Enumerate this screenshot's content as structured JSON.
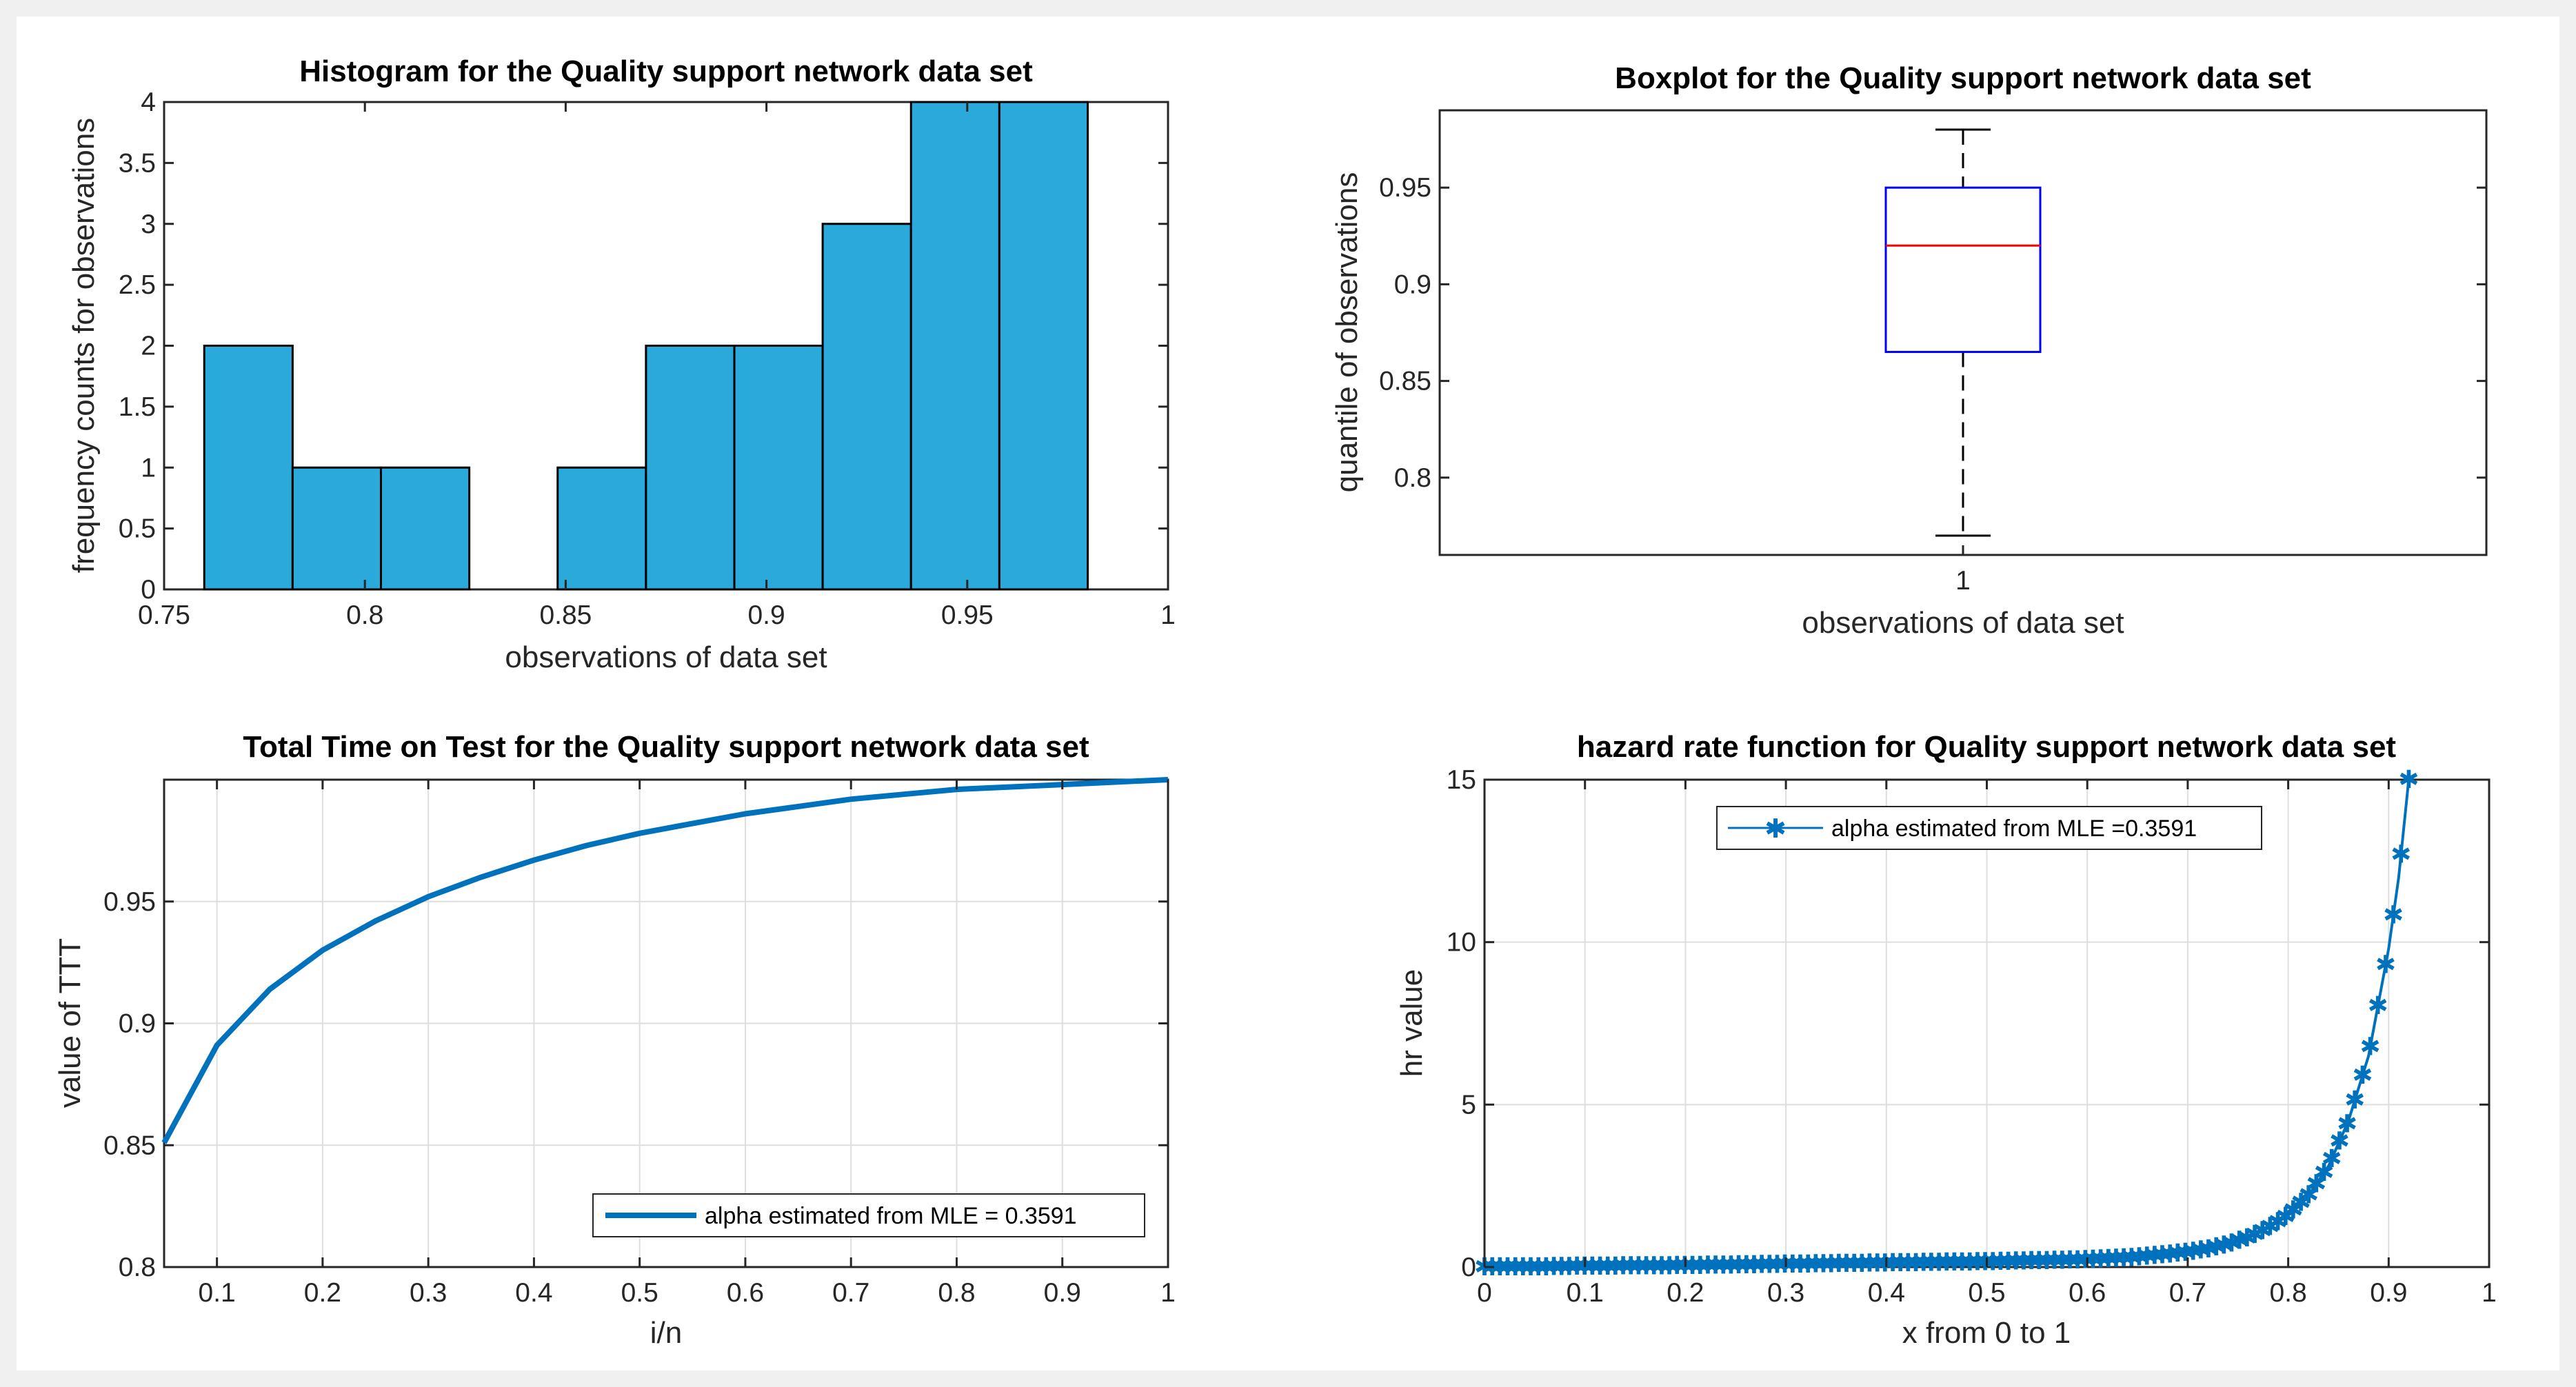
{
  "chart_data": [
    {
      "id": "histogram",
      "type": "bar",
      "title": "Histogram for the Quality support network  data set",
      "xlabel": "observations of  data set",
      "ylabel": "frequency counts for observations",
      "xlim": [
        0.75,
        1
      ],
      "ylim": [
        0,
        4
      ],
      "xticks": [
        "0.75",
        "0.8",
        "0.85",
        "0.9",
        "0.95",
        "1"
      ],
      "yticks": [
        "0",
        "0.5",
        "1",
        "1.5",
        "2",
        "2.5",
        "3",
        "3.5",
        "4"
      ],
      "bin_edges": [
        0.76,
        0.782,
        0.804,
        0.826,
        0.848,
        0.87,
        0.892,
        0.914,
        0.936,
        0.958,
        0.98
      ],
      "values": [
        2,
        1,
        1,
        0,
        1,
        2,
        2,
        3,
        4,
        4
      ],
      "colors": {
        "bar": "#29aada",
        "edge": "#000000"
      }
    },
    {
      "id": "boxplot",
      "type": "box",
      "title": "Boxplot for the Quality support network data set",
      "xlabel": "observations of  data set",
      "ylabel": "quantile of observations",
      "categories": [
        "1"
      ],
      "ylim": [
        0.76,
        0.99
      ],
      "yticks": [
        "0.8",
        "0.85",
        "0.9",
        "0.95"
      ],
      "stats": {
        "min": 0.77,
        "q1": 0.865,
        "median": 0.92,
        "q3": 0.95,
        "max": 0.98
      },
      "colors": {
        "box": "#0000ff",
        "median": "#ff0000",
        "whisker": "#000000"
      }
    },
    {
      "id": "ttt",
      "type": "line",
      "title": "Total Time on Test for the Quality support network data set",
      "xlabel": "i/n",
      "ylabel": "value of TTT",
      "xlim": [
        0.05,
        1
      ],
      "ylim": [
        0.8,
        1
      ],
      "xticks": [
        "0.1",
        "0.2",
        "0.3",
        "0.4",
        "0.5",
        "0.6",
        "0.7",
        "0.8",
        "0.9",
        "1"
      ],
      "yticks": [
        "0.8",
        "0.85",
        "0.9",
        "0.95"
      ],
      "grid": true,
      "legend_position": "bottom-right",
      "series": [
        {
          "name": "alpha estimated from  MLE = 0.3591",
          "x": [
            0.05,
            0.1,
            0.15,
            0.2,
            0.25,
            0.3,
            0.35,
            0.4,
            0.45,
            0.5,
            0.55,
            0.6,
            0.65,
            0.7,
            0.75,
            0.8,
            0.85,
            0.9,
            0.95,
            1.0
          ],
          "y": [
            0.851,
            0.891,
            0.914,
            0.93,
            0.942,
            0.952,
            0.96,
            0.967,
            0.973,
            0.978,
            0.982,
            0.986,
            0.989,
            0.992,
            0.994,
            0.996,
            0.997,
            0.998,
            0.999,
            1.0
          ],
          "color": "#0072bd"
        }
      ]
    },
    {
      "id": "hazard",
      "type": "line",
      "title": "hazard rate function for Quality support network data set",
      "xlabel": "x from 0 to 1",
      "ylabel": "hr value",
      "xlim": [
        0,
        1
      ],
      "ylim": [
        0,
        15
      ],
      "xticks": [
        "0",
        "0.1",
        "0.2",
        "0.3",
        "0.4",
        "0.5",
        "0.6",
        "0.7",
        "0.8",
        "0.9",
        "1"
      ],
      "yticks": [
        "0",
        "5",
        "10",
        "15"
      ],
      "grid": true,
      "legend_position": "top",
      "series": [
        {
          "name": "alpha estimated from  MLE =0.3591",
          "marker": "*",
          "x": [
            0.0,
            0.05,
            0.1,
            0.15,
            0.2,
            0.25,
            0.3,
            0.35,
            0.4,
            0.45,
            0.5,
            0.55,
            0.6,
            0.65,
            0.7,
            0.72,
            0.74,
            0.76,
            0.78,
            0.8,
            0.82,
            0.84,
            0.86,
            0.88,
            0.9,
            0.91,
            0.92
          ],
          "y": [
            0.0,
            0.0,
            0.02,
            0.03,
            0.04,
            0.06,
            0.08,
            0.1,
            0.12,
            0.14,
            0.16,
            0.19,
            0.22,
            0.3,
            0.45,
            0.55,
            0.7,
            0.9,
            1.2,
            1.6,
            2.2,
            3.1,
            4.5,
            6.5,
            9.8,
            12.0,
            15.0
          ],
          "color": "#0072bd"
        }
      ]
    }
  ]
}
